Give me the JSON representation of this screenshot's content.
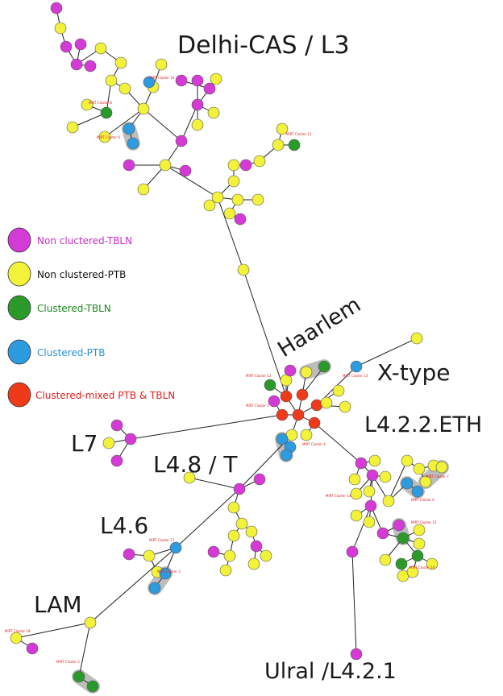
{
  "colors": {
    "non_clustered_tbln": "#d63ad6",
    "non_clustered_ptb": "#f2f23a",
    "clustered_tbln": "#2a9a2a",
    "clustered_ptb": "#2d9be0",
    "clustered_mixed": "#ef3a1a",
    "edge": "#222222",
    "halo": "#bdbdbd",
    "cluster_label": "#e02020",
    "legend_non_clustered_tbln": "#c531c5",
    "legend_non_clustered_ptb": "#111111",
    "legend_clustered_tbln": "#1e8a1e",
    "legend_clustered_ptb": "#2b8fd6",
    "legend_clustered_mixed": "#e02020"
  },
  "legend": [
    {
      "key": "non_clustered_tbln",
      "label": "Non cluctered-TBLN"
    },
    {
      "key": "non_clustered_ptb",
      "label": "Non clustered-PTB"
    },
    {
      "key": "clustered_tbln",
      "label": "Clustered-TBLN"
    },
    {
      "key": "clustered_ptb",
      "label": "Clustered-PTB"
    },
    {
      "key": "clustered_mixed",
      "label": "Clustered-mixed PTB & TBLN"
    }
  ],
  "lineages": {
    "delhi_cas": "Delhi-CAS / L3",
    "haarlem": "Haarlem",
    "x_type": "X-type",
    "l4_2_2_eth": "L4.2.2.ETH",
    "l7": "L7",
    "l4_8_t": "L4.8 / T",
    "l4_6": "L4.6",
    "lam": "LAM",
    "ural": "Ulral /L4.2.1"
  },
  "cluster_labels": [
    "MIRT Cluster 10",
    "MIRT Cluster 8",
    "MIRT Cluster 9",
    "MIRT Cluster 11",
    "MIRT Cluster 12",
    "MIRT Cluster 1",
    "MIRT Cluster 13",
    "MIRT Cluster 4",
    "MIRT Cluster 7",
    "MIRT Cluster 6",
    "MIRT Cluster 14",
    "MIRT Cluster 15",
    "MIRT Cluster 16",
    "MIRT Cluster 17",
    "MIRT Cluster 3",
    "MIRT Cluster 18",
    "MIRT Cluster 2"
  ]
}
